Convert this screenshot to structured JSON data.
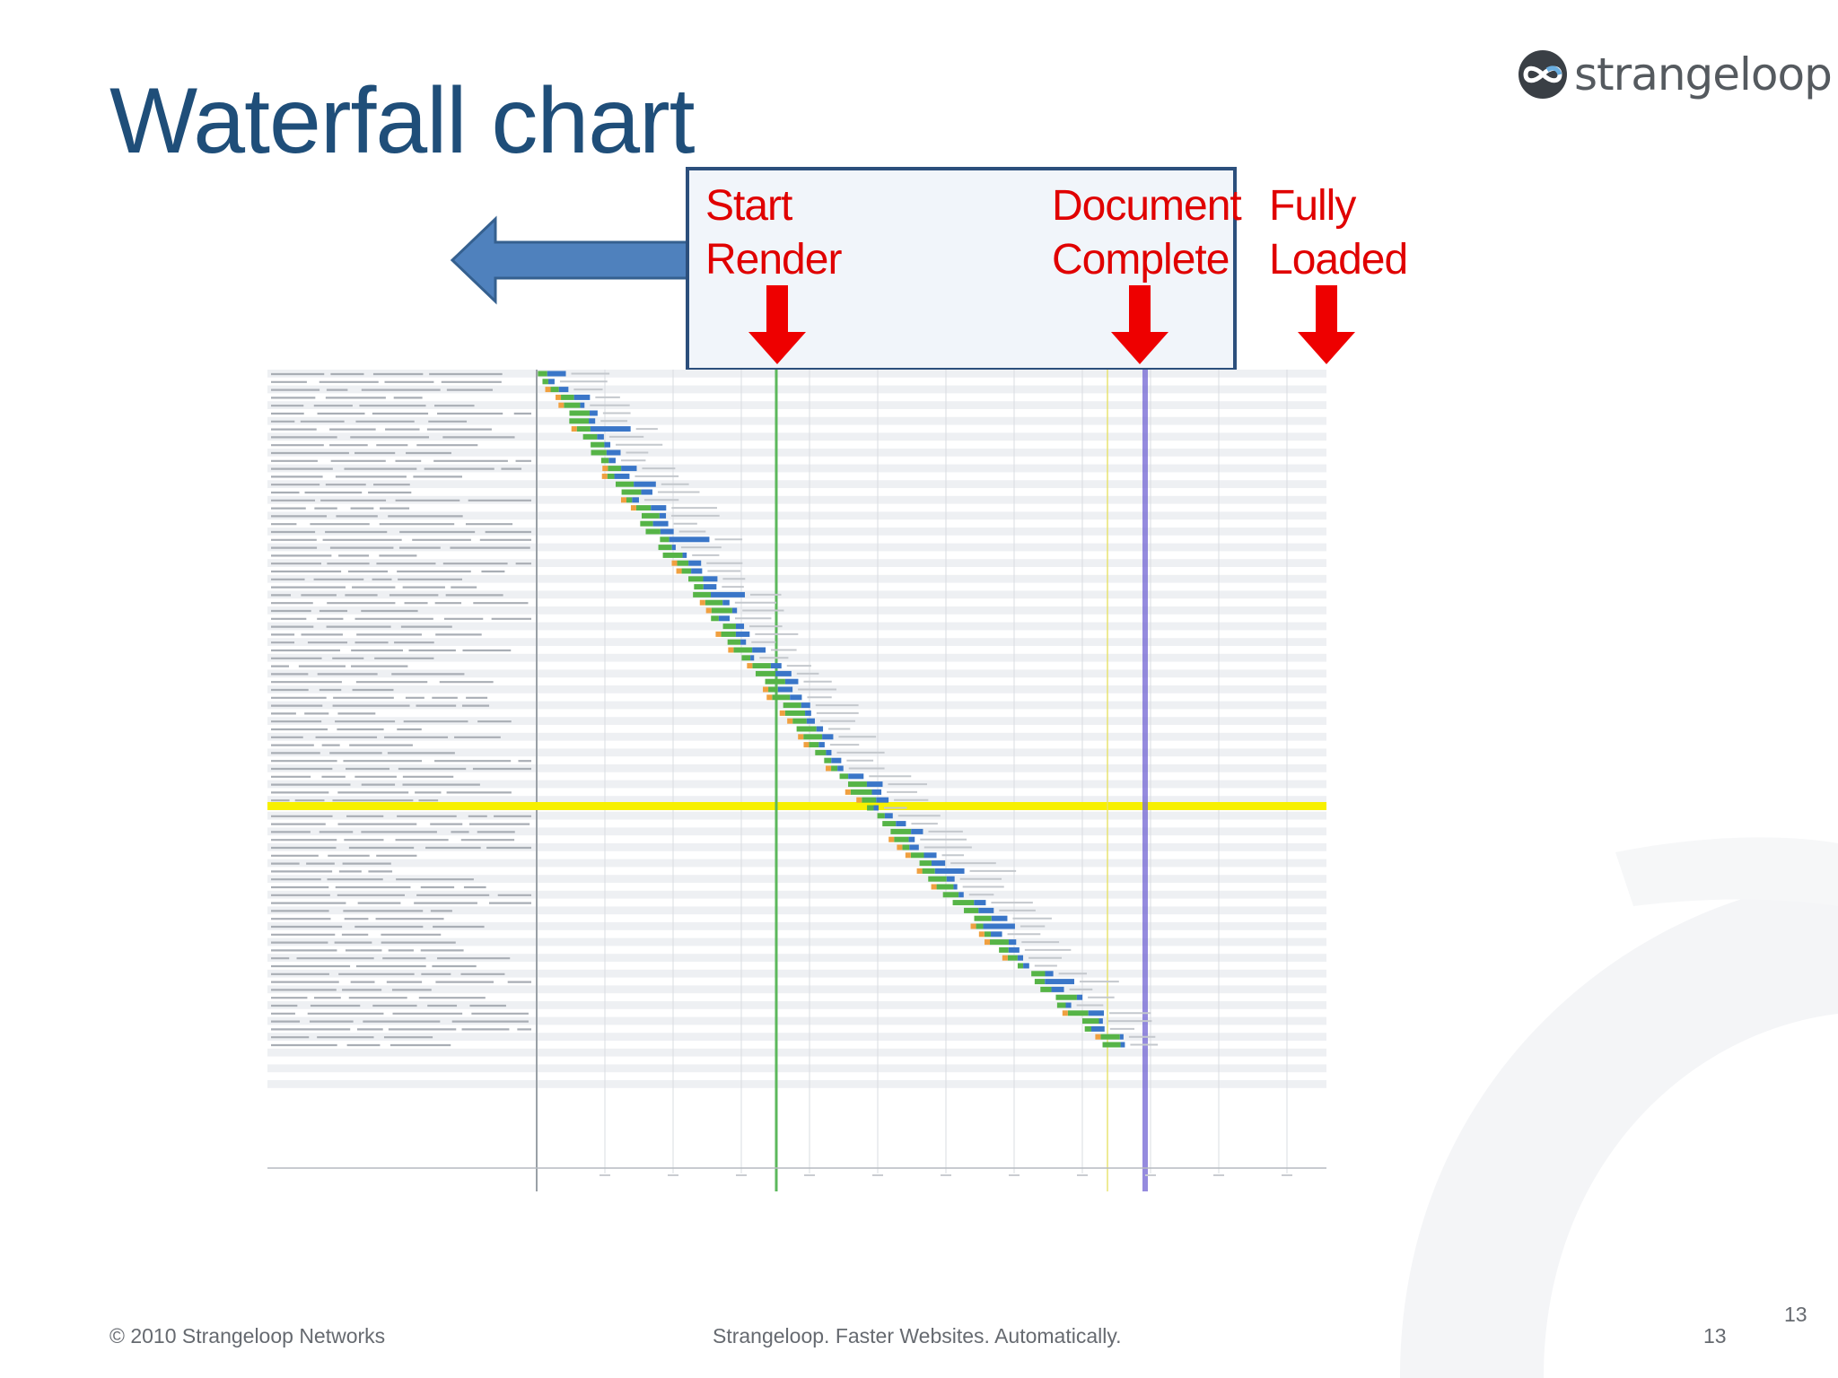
{
  "slide": {
    "title": "Waterfall chart",
    "logo_text": "strangeloop",
    "logo_icon": "strangeloop-infinity-icon"
  },
  "callouts": {
    "start_render": "Start\nRender",
    "document_complete": "Document\nComplete",
    "fully_loaded": "Fully\nLoaded"
  },
  "colors": {
    "title": "#1f4e79",
    "callout_text": "#e00000",
    "callout_box_border": "#2c4f7c",
    "blue_arrow": "#4f81bd",
    "start_render_line": "#5cb85c",
    "document_complete_line": "#7b6fd6",
    "highlight_row": "#f7f000"
  },
  "footer": {
    "copyright": "© 2010 Strangeloop Networks",
    "tagline": "Strangeloop. Faster Websites. Automatically.",
    "page_number": "13",
    "page_number_top": "13"
  }
}
